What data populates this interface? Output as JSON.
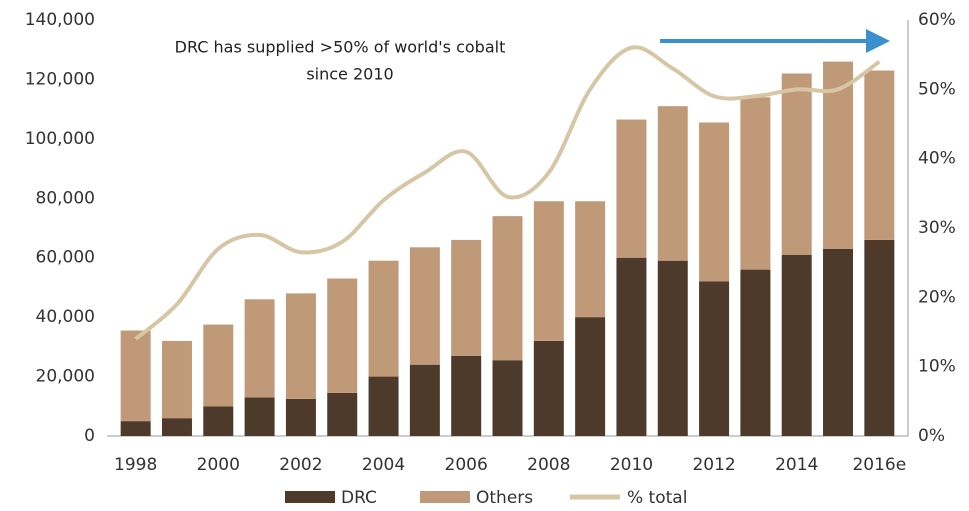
{
  "chart_data": {
    "type": "bar",
    "annotation": [
      "DRC has supplied >50% of world's cobalt",
      "since 2010"
    ],
    "categories": [
      "1998",
      null,
      "2000",
      null,
      "2002",
      null,
      "2004",
      null,
      "2006",
      null,
      "2008",
      null,
      "2010",
      null,
      "2012",
      null,
      "2014",
      null,
      "2016e"
    ],
    "series": [
      {
        "name": "DRC",
        "color": "#4d3a2b",
        "values": [
          5000,
          6000,
          10000,
          13000,
          12500,
          14500,
          20000,
          24000,
          27000,
          25500,
          32000,
          40000,
          60000,
          59000,
          52000,
          56000,
          61000,
          63000,
          66000
        ]
      },
      {
        "name": "Others",
        "color": "#c09a78",
        "values": [
          30500,
          26000,
          27500,
          33000,
          35500,
          38500,
          39000,
          39500,
          39000,
          48500,
          47000,
          39000,
          46500,
          52000,
          53500,
          58000,
          61000,
          63000,
          57000
        ]
      },
      {
        "name": "% total",
        "color": "#d6c6a5",
        "axis": "y2",
        "type": "line",
        "values": [
          14,
          19,
          27,
          29,
          26.5,
          28,
          34,
          38,
          41,
          34.5,
          38,
          50,
          56,
          53,
          49,
          49,
          50,
          50,
          54
        ]
      }
    ],
    "stacked": true,
    "ylim": [
      0,
      140000
    ],
    "yticks": [
      0,
      {
        "value": 20000,
        "label": "20,000"
      },
      {
        "value": 40000,
        "label": "40,000"
      },
      {
        "value": 60000,
        "label": "60,000"
      },
      {
        "value": 80000,
        "label": "80,000"
      },
      {
        "value": 100000,
        "label": "100,000"
      },
      {
        "value": 120000,
        "label": "120,000"
      },
      {
        "value": 140000,
        "label": "140,000"
      }
    ],
    "y2lim": [
      0,
      60
    ],
    "y2ticks": [
      {
        "value": 0,
        "label": "0%"
      },
      {
        "value": 10,
        "label": "10%"
      },
      {
        "value": 20,
        "label": "20%"
      },
      {
        "value": 30,
        "label": "30%"
      },
      {
        "value": 40,
        "label": "40%"
      },
      {
        "value": 50,
        "label": "50%"
      },
      {
        "value": 60,
        "label": "60%"
      }
    ],
    "legend": "bottom"
  }
}
